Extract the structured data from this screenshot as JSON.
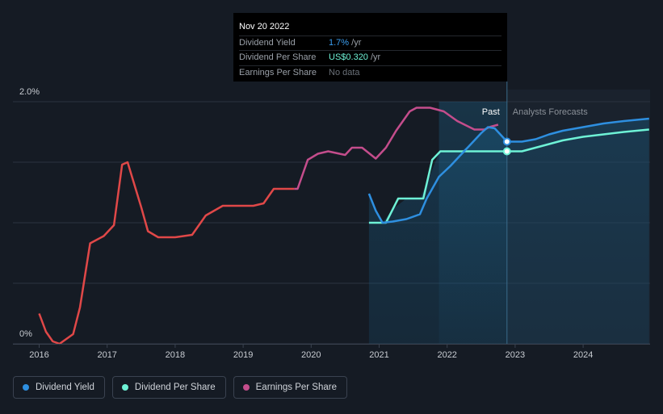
{
  "tooltip": {
    "date": "Nov 20 2022",
    "rows": [
      {
        "label": "Dividend Yield",
        "value": "1.7%",
        "suffix": " /yr"
      },
      {
        "label": "Dividend Per Share",
        "value": "US$0.320",
        "suffix": " /yr"
      },
      {
        "label": "Earnings Per Share",
        "value": "No data",
        "suffix": ""
      }
    ]
  },
  "regions": {
    "past": "Past",
    "forecast": "Analysts Forecasts"
  },
  "colors": {
    "background": "#151b24",
    "dividend_yield": "#2e8fe0",
    "dividend_per_share": "#6ef2d6",
    "eps_low": "#e04848",
    "eps_high": "#c44d8c"
  },
  "chart_data": {
    "type": "line",
    "title": "",
    "xlabel": "",
    "ylabel": "",
    "x_ticks": [
      "2016",
      "2017",
      "2018",
      "2019",
      "2020",
      "2021",
      "2022",
      "2023",
      "2024"
    ],
    "y_ticks": [
      "0%",
      "2.0%"
    ],
    "ylim": [
      0,
      2.0
    ],
    "xlim": [
      2015.7,
      2024.97
    ],
    "grid": true,
    "legend": "bottom-left",
    "past_end": 2022.88,
    "shaded_start": 2021.88,
    "series": [
      {
        "name": "Dividend Yield",
        "x": [
          2020.85,
          2020.95,
          2021.05,
          2021.2,
          2021.4,
          2021.6,
          2021.7,
          2021.88,
          2022.05,
          2022.2,
          2022.35,
          2022.5,
          2022.6,
          2022.7,
          2022.88,
          2023.1,
          2023.3,
          2023.5,
          2023.7,
          2024.0,
          2024.3,
          2024.6,
          2024.97
        ],
        "y": [
          1.24,
          1.1,
          1.0,
          1.01,
          1.03,
          1.07,
          1.2,
          1.38,
          1.47,
          1.56,
          1.65,
          1.74,
          1.79,
          1.78,
          1.67,
          1.67,
          1.69,
          1.73,
          1.76,
          1.79,
          1.82,
          1.84,
          1.86
        ]
      },
      {
        "name": "Dividend Per Share",
        "x": [
          2020.85,
          2021.1,
          2021.28,
          2021.35,
          2021.65,
          2021.78,
          2021.9,
          2022.2,
          2022.5,
          2022.88,
          2023.1,
          2023.3,
          2023.5,
          2023.7,
          2024.0,
          2024.3,
          2024.6,
          2024.97
        ],
        "y": [
          1.0,
          1.0,
          1.2,
          1.2,
          1.2,
          1.52,
          1.59,
          1.59,
          1.59,
          1.59,
          1.59,
          1.62,
          1.65,
          1.68,
          1.71,
          1.73,
          1.75,
          1.77
        ],
        "unit": "US$",
        "tooltip_value": 0.32
      },
      {
        "name": "Earnings Per Share",
        "x": [
          2016.0,
          2016.1,
          2016.2,
          2016.3,
          2016.5,
          2016.6,
          2016.75,
          2016.95,
          2017.1,
          2017.22,
          2017.3,
          2017.5,
          2017.6,
          2017.75,
          2018.0,
          2018.25,
          2018.45,
          2018.7,
          2018.9,
          2019.15,
          2019.3,
          2019.45,
          2019.6,
          2019.75,
          2019.8,
          2019.95,
          2020.1,
          2020.25,
          2020.5,
          2020.6,
          2020.75,
          2020.95,
          2021.1,
          2021.25,
          2021.45,
          2021.55,
          2021.75,
          2021.95,
          2022.15,
          2022.4,
          2022.55,
          2022.62,
          2022.75
        ],
        "y": [
          0.25,
          0.1,
          0.02,
          0.0,
          0.08,
          0.3,
          0.83,
          0.89,
          0.98,
          1.48,
          1.5,
          1.13,
          0.93,
          0.88,
          0.88,
          0.9,
          1.06,
          1.14,
          1.14,
          1.14,
          1.16,
          1.28,
          1.28,
          1.28,
          1.28,
          1.52,
          1.57,
          1.59,
          1.56,
          1.62,
          1.62,
          1.53,
          1.62,
          1.76,
          1.92,
          1.95,
          1.95,
          1.92,
          1.84,
          1.77,
          1.77,
          1.79,
          1.81
        ]
      }
    ],
    "markers": [
      {
        "series": "Dividend Yield",
        "x": 2022.88,
        "y": 1.67
      },
      {
        "series": "Dividend Per Share",
        "x": 2022.88,
        "y": 1.59
      }
    ]
  }
}
